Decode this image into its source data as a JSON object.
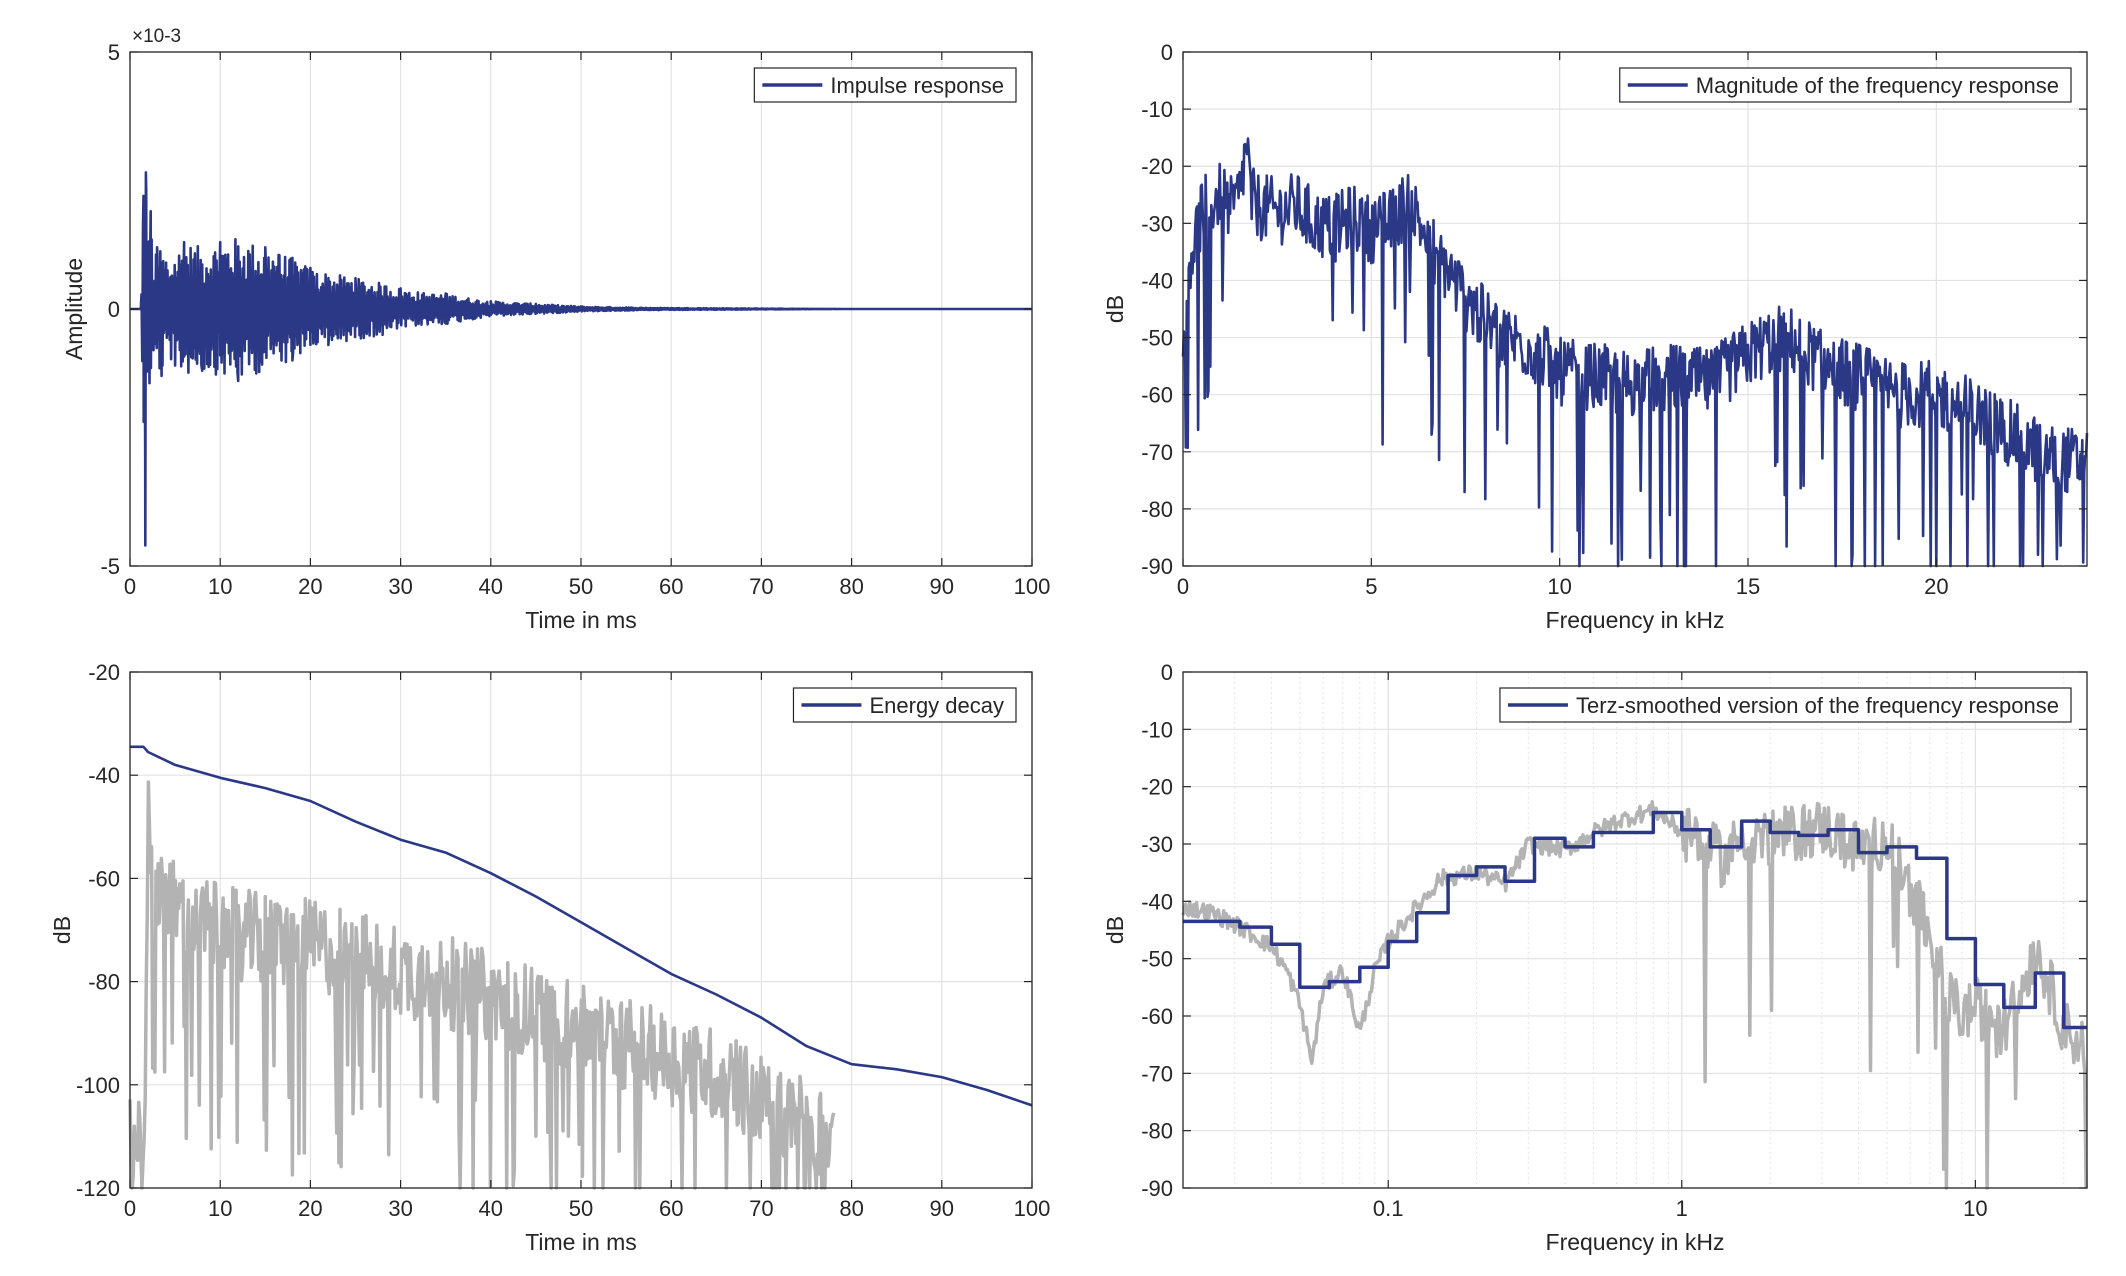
{
  "colors": {
    "series": "#2b3886",
    "grey": "#b3b3b3",
    "axis": "#262626",
    "grid": "#e3e3e3",
    "background": "#ffffff"
  },
  "chart_data": [
    {
      "type": "line",
      "ylabel": "Amplitude",
      "xlabel": "Time in ms",
      "exponent_label": "×10-3",
      "legend": {
        "entries": [
          "Impulse response"
        ],
        "location": "top-right"
      },
      "grid": true,
      "xlim": [
        0,
        100
      ],
      "ylim": [
        -0.005,
        0.005
      ],
      "xticks": [
        0,
        10,
        20,
        30,
        40,
        50,
        60,
        70,
        80,
        90,
        100
      ],
      "xtick_labels": [
        "0",
        "10",
        "20",
        "30",
        "40",
        "50",
        "60",
        "70",
        "80",
        "90",
        "100"
      ],
      "yticks": [
        -0.005,
        0,
        0.005
      ],
      "ytick_labels": [
        "-5",
        "0",
        "5"
      ],
      "series": [
        {
          "name": "Impulse response",
          "x": [
            0,
            1.2,
            1.5,
            1.7,
            1.8,
            2.0,
            2.3,
            2.6,
            3.0,
            3.5,
            4.0,
            5.0,
            6.0,
            8.0,
            10.0,
            12.0,
            15.0,
            18.0,
            20.0,
            22.0,
            25.0,
            28.0,
            30.0,
            33.0,
            35.0,
            38.0,
            40.0,
            45.0,
            50.0,
            55.0,
            60.0,
            70.0,
            80.0,
            90.0,
            100.0
          ],
          "y": [
            0,
            0,
            0.0022,
            -0.0046,
            0.0023,
            -0.0012,
            0.0019,
            -0.0008,
            0.0012,
            -0.0013,
            0.0009,
            -0.0011,
            0.0013,
            -0.0012,
            0.0013,
            -0.0014,
            0.0012,
            -0.001,
            0.0008,
            -0.0007,
            0.0006,
            -0.0005,
            0.0004,
            -0.0003,
            0.0003,
            -0.0002,
            0.00015,
            0.0001,
            5e-05,
            3e-05,
            2e-05,
            1e-05,
            0,
            0,
            0
          ]
        }
      ]
    },
    {
      "type": "line",
      "ylabel": "dB",
      "xlabel": "Frequency in kHz",
      "legend": {
        "entries": [
          "Magnitude of the frequency response"
        ],
        "location": "top-right"
      },
      "grid": true,
      "xlim": [
        0,
        24
      ],
      "ylim": [
        -90,
        0
      ],
      "xticks": [
        0,
        5,
        10,
        15,
        20
      ],
      "xtick_labels": [
        "0",
        "5",
        "10",
        "15",
        "20"
      ],
      "yticks": [
        0,
        -10,
        -20,
        -30,
        -40,
        -50,
        -60,
        -70,
        -80,
        -90
      ],
      "ytick_labels": [
        "0",
        "-10",
        "-20",
        "-30",
        "-40",
        "-50",
        "-60",
        "-70",
        "-80",
        "-90"
      ],
      "series": [
        {
          "name": "Magnitude of the frequency response",
          "x": [
            0,
            0.1,
            0.3,
            0.5,
            0.8,
            1.0,
            1.3,
            1.5,
            1.7,
            1.8,
            2.0,
            2.5,
            3.0,
            3.5,
            4.0,
            4.5,
            5.0,
            5.5,
            6.0,
            6.3,
            6.5,
            7.0,
            7.5,
            8.0,
            8.5,
            9.0,
            9.5,
            10.0,
            11.0,
            12.0,
            13.0,
            14.0,
            15.0,
            15.5,
            16.0,
            16.5,
            17.0,
            18.0,
            19.0,
            20.0,
            21.0,
            22.0,
            23.0,
            24.0
          ],
          "y": [
            -55,
            -38,
            -33,
            -28,
            -26,
            -25,
            -28,
            -25,
            -16,
            -26,
            -27,
            -28,
            -27,
            -30,
            -31,
            -29,
            -31,
            -30,
            -26,
            -30,
            -33,
            -38,
            -43,
            -47,
            -50,
            -51,
            -53,
            -56,
            -57,
            -58,
            -57,
            -58,
            -53,
            -51,
            -50,
            -52,
            -55,
            -57,
            -60,
            -60,
            -63,
            -67,
            -71,
            -72
          ]
        }
      ]
    },
    {
      "type": "line",
      "ylabel": "dB",
      "xlabel": "Time in ms",
      "legend": {
        "entries": [
          "Energy decay"
        ],
        "location": "top-right"
      },
      "grid": true,
      "xlim": [
        0,
        100
      ],
      "ylim": [
        -120,
        -20
      ],
      "xticks": [
        0,
        10,
        20,
        30,
        40,
        50,
        60,
        70,
        80,
        90,
        100
      ],
      "xtick_labels": [
        "0",
        "10",
        "20",
        "30",
        "40",
        "50",
        "60",
        "70",
        "80",
        "90",
        "100"
      ],
      "yticks": [
        -20,
        -40,
        -60,
        -80,
        -100,
        -120
      ],
      "ytick_labels": [
        "-20",
        "-40",
        "-60",
        "-80",
        "-100",
        "-120"
      ],
      "series": [
        {
          "name": "Energy decay",
          "x": [
            0,
            1.5,
            2,
            5,
            10,
            15,
            20,
            25,
            30,
            35,
            40,
            45,
            50,
            55,
            60,
            65,
            70,
            75,
            80,
            85,
            90,
            95,
            100
          ],
          "y": [
            -34.5,
            -34.5,
            -35.5,
            -38,
            -40.5,
            -42.5,
            -45,
            -49,
            -52.5,
            -55,
            -59,
            -63.5,
            -68.5,
            -73.5,
            -78.5,
            -82.5,
            -87,
            -92.5,
            -96,
            -97,
            -98.5,
            -101,
            -104
          ]
        },
        {
          "name": "",
          "x": [
            0,
            1.7,
            2,
            3,
            5,
            8,
            10,
            15,
            20,
            25,
            30,
            35,
            40,
            45,
            50,
            55,
            60,
            65,
            70,
            75,
            78
          ],
          "y": [
            -110,
            -110,
            -47,
            -60,
            -65,
            -68,
            -70,
            -72,
            -73,
            -75,
            -78,
            -80,
            -83,
            -86,
            -89,
            -92,
            -95,
            -98,
            -103,
            -107,
            -112
          ]
        }
      ]
    },
    {
      "type": "line",
      "ylabel": "dB",
      "xlabel": "Frequency in kHz",
      "legend": {
        "entries": [
          "Terz-smoothed version of the frequency response"
        ],
        "location": "top-right"
      },
      "grid": true,
      "xscale": "log",
      "xlim": [
        0.02,
        24
      ],
      "ylim": [
        -90,
        0
      ],
      "xticks": [
        0.1,
        1,
        10
      ],
      "xtick_labels": [
        "0.1",
        "1",
        "10"
      ],
      "yticks": [
        0,
        -10,
        -20,
        -30,
        -40,
        -50,
        -60,
        -70,
        -80,
        -90
      ],
      "ytick_labels": [
        "0",
        "-10",
        "-20",
        "-30",
        "-40",
        "-50",
        "-60",
        "-70",
        "-80",
        "-90"
      ],
      "series": [
        {
          "name": "Terz-smoothed version of the frequency response",
          "x": [
            0.02,
            0.03125,
            0.04,
            0.05,
            0.063,
            0.08,
            0.1,
            0.125,
            0.16,
            0.2,
            0.25,
            0.315,
            0.4,
            0.5,
            0.63,
            0.8,
            1.0,
            1.25,
            1.6,
            2.0,
            2.5,
            3.15,
            4.0,
            5.0,
            6.3,
            8.0,
            10.0,
            12.5,
            16.0,
            20.0,
            24.0
          ],
          "y": [
            -43.5,
            -44.5,
            -47.5,
            -55,
            -54,
            -51.5,
            -47,
            -42,
            -35.5,
            -34,
            -36.5,
            -29,
            -30.5,
            -28,
            -28,
            -24.5,
            -27.5,
            -30.5,
            -26,
            -28,
            -28.5,
            -27.5,
            -31.5,
            -30.5,
            -32.5,
            -46.5,
            -54.5,
            -58.5,
            -52.5,
            -62,
            -62
          ]
        },
        {
          "name": "",
          "x": [
            0.02,
            0.025,
            0.03,
            0.035,
            0.04,
            0.045,
            0.05,
            0.055,
            0.06,
            0.07,
            0.08,
            0.09,
            0.1,
            0.12,
            0.15,
            0.2,
            0.25,
            0.3,
            0.4,
            0.5,
            0.6,
            0.8,
            1.0,
            1.2,
            1.4,
            1.6,
            2.0,
            3.0,
            4.0,
            5.0,
            6.0,
            7.0,
            8.0,
            9.0,
            10.0,
            12.0,
            14.0,
            16.0,
            20.0,
            24.0
          ],
          "y": [
            -41,
            -42,
            -44,
            -46,
            -48,
            -52,
            -58,
            -68,
            -55,
            -52,
            -63,
            -52,
            -47,
            -42,
            -36,
            -35,
            -37,
            -30,
            -31,
            -28,
            -26,
            -24,
            -28,
            -30,
            -33,
            -28,
            -29,
            -27,
            -31,
            -29,
            -38,
            -46,
            -56,
            -60,
            -58,
            -63,
            -57,
            -48,
            -62,
            -66
          ]
        }
      ]
    }
  ]
}
